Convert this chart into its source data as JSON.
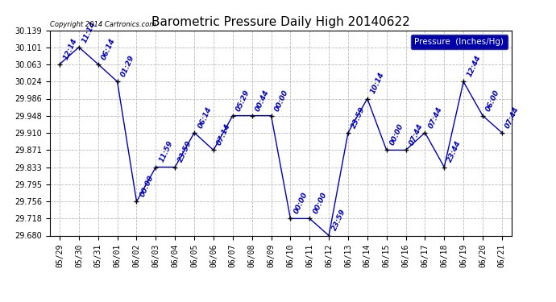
{
  "title": "Barometric Pressure Daily High 20140622",
  "copyright_text": "Copyright 2014 Cartronics.com",
  "legend_label": "Pressure  (Inches/Hg)",
  "x_labels": [
    "05/29",
    "05/30",
    "05/31",
    "06/01",
    "06/02",
    "06/03",
    "06/04",
    "06/05",
    "06/06",
    "06/07",
    "06/08",
    "06/09",
    "06/10",
    "06/11",
    "06/12",
    "06/13",
    "06/14",
    "06/15",
    "06/16",
    "06/17",
    "06/18",
    "06/19",
    "06/20",
    "06/21"
  ],
  "y_values": [
    30.063,
    30.101,
    30.063,
    30.024,
    29.756,
    29.833,
    29.833,
    29.91,
    29.871,
    29.948,
    29.948,
    29.948,
    29.718,
    29.718,
    29.68,
    29.91,
    29.986,
    29.871,
    29.871,
    29.91,
    29.833,
    30.024,
    29.948,
    29.91
  ],
  "time_labels": [
    "12:14",
    "11:14",
    "06:14",
    "01:29",
    "00:00",
    "11:59",
    "23:59",
    "06:14",
    "07:14",
    "05:29",
    "00:44",
    "00:00",
    "00:00",
    "00:00",
    "23:59",
    "23:59",
    "10:14",
    "00:00",
    "07:44",
    "07:44",
    "23:44",
    "12:44",
    "06:00",
    "07:44"
  ],
  "ylim_min": 29.68,
  "ylim_max": 30.139,
  "yticks": [
    29.68,
    29.718,
    29.756,
    29.795,
    29.833,
    29.871,
    29.91,
    29.948,
    29.986,
    30.024,
    30.063,
    30.101,
    30.139
  ],
  "line_color": "#0000bb",
  "marker_color": "#000000",
  "bg_color": "#ffffff",
  "grid_color": "#bbbbbb",
  "title_fontsize": 11,
  "tick_fontsize": 7,
  "annot_fontsize": 6.5,
  "legend_bg": "#0000aa",
  "legend_text_color": "#ffffff"
}
